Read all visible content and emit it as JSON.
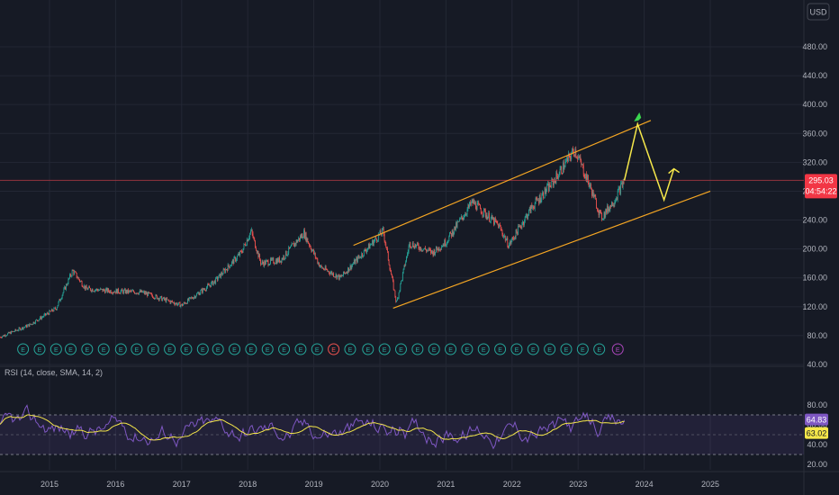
{
  "header": {
    "currency": "USD"
  },
  "colors": {
    "background": "#161a25",
    "grid": "#232734",
    "axis_text": "#b2b5be",
    "up": "#26a69a",
    "down": "#ef5350",
    "channel": "#f5a623",
    "projection": "#f5e74a",
    "price_line": "#b33a43",
    "price_tag": "#f23645",
    "rsi_line": "#7e57c2",
    "rsi_sma": "#f5e74a",
    "rsi_band": "#7e57c2",
    "rsi_tag_bg": "#7e57c2",
    "rsi_sma_tag_bg": "#f5e74a",
    "rocket": "#3ad64f"
  },
  "price_axis": {
    "ticks": [
      "480.00",
      "440.00",
      "400.00",
      "360.00",
      "320.00",
      "280.00",
      "240.00",
      "200.00",
      "160.00",
      "120.00",
      "80.00",
      "40.00"
    ]
  },
  "current_price": {
    "value": "295.03",
    "countdown": "04:54:22"
  },
  "time_axis": {
    "labels": [
      "2015",
      "2016",
      "2017",
      "2018",
      "2019",
      "2020",
      "2021",
      "2022",
      "2023",
      "2024",
      "2025"
    ]
  },
  "rsi": {
    "title": "RSI (14, close, SMA, 14, 2)",
    "ticks": [
      "80.00",
      "60.00",
      "40.00",
      "20.00"
    ],
    "value": "64.83",
    "sma_value": "63.02",
    "band_upper": 70,
    "band_lower": 30
  },
  "earnings_markers": {
    "events": [
      {
        "year": 2014.6,
        "kind": "E"
      },
      {
        "year": 2014.85,
        "kind": "E"
      },
      {
        "year": 2015.1,
        "kind": "E"
      },
      {
        "year": 2015.32,
        "kind": "E"
      },
      {
        "year": 2015.57,
        "kind": "E"
      },
      {
        "year": 2015.82,
        "kind": "E"
      },
      {
        "year": 2016.08,
        "kind": "E"
      },
      {
        "year": 2016.32,
        "kind": "E"
      },
      {
        "year": 2016.57,
        "kind": "E"
      },
      {
        "year": 2016.82,
        "kind": "E"
      },
      {
        "year": 2017.07,
        "kind": "E"
      },
      {
        "year": 2017.32,
        "kind": "E"
      },
      {
        "year": 2017.55,
        "kind": "E"
      },
      {
        "year": 2017.8,
        "kind": "E"
      },
      {
        "year": 2018.05,
        "kind": "E"
      },
      {
        "year": 2018.3,
        "kind": "E"
      },
      {
        "year": 2018.55,
        "kind": "E"
      },
      {
        "year": 2018.8,
        "kind": "E"
      },
      {
        "year": 2019.05,
        "kind": "E"
      },
      {
        "year": 2019.3,
        "kind": "E"
      },
      {
        "year": 2019.55,
        "kind": "E"
      },
      {
        "year": 2019.82,
        "kind": "E"
      },
      {
        "year": 2020.07,
        "kind": "E"
      },
      {
        "year": 2020.32,
        "kind": "E"
      },
      {
        "year": 2020.57,
        "kind": "E"
      },
      {
        "year": 2020.82,
        "kind": "E"
      },
      {
        "year": 2021.07,
        "kind": "E"
      },
      {
        "year": 2021.32,
        "kind": "E"
      },
      {
        "year": 2021.57,
        "kind": "E"
      },
      {
        "year": 2021.82,
        "kind": "E"
      },
      {
        "year": 2022.07,
        "kind": "E"
      },
      {
        "year": 2022.32,
        "kind": "E"
      },
      {
        "year": 2022.57,
        "kind": "E"
      },
      {
        "year": 2022.82,
        "kind": "E"
      },
      {
        "year": 2023.07,
        "kind": "E"
      },
      {
        "year": 2023.32,
        "kind": "E"
      },
      {
        "year": 2023.6,
        "kind": "E"
      }
    ]
  },
  "chart_data": {
    "type": "candlestick",
    "x_range": [
      2014.25,
      2025.9
    ],
    "y_range": [
      20,
      520
    ],
    "price_series_key_points": [
      {
        "date": 2014.25,
        "close": 78
      },
      {
        "date": 2014.7,
        "close": 95
      },
      {
        "date": 2015.1,
        "close": 118
      },
      {
        "date": 2015.35,
        "close": 170
      },
      {
        "date": 2015.55,
        "close": 145
      },
      {
        "date": 2015.9,
        "close": 142
      },
      {
        "date": 2016.4,
        "close": 140
      },
      {
        "date": 2016.8,
        "close": 128
      },
      {
        "date": 2017.0,
        "close": 122
      },
      {
        "date": 2017.5,
        "close": 155
      },
      {
        "date": 2017.9,
        "close": 195
      },
      {
        "date": 2018.05,
        "close": 225
      },
      {
        "date": 2018.2,
        "close": 180
      },
      {
        "date": 2018.5,
        "close": 185
      },
      {
        "date": 2018.85,
        "close": 222
      },
      {
        "date": 2019.1,
        "close": 175
      },
      {
        "date": 2019.4,
        "close": 160
      },
      {
        "date": 2019.75,
        "close": 195
      },
      {
        "date": 2020.05,
        "close": 225
      },
      {
        "date": 2020.25,
        "close": 125
      },
      {
        "date": 2020.45,
        "close": 208
      },
      {
        "date": 2020.8,
        "close": 195
      },
      {
        "date": 2021.0,
        "close": 210
      },
      {
        "date": 2021.4,
        "close": 265
      },
      {
        "date": 2021.8,
        "close": 232
      },
      {
        "date": 2021.95,
        "close": 205
      },
      {
        "date": 2022.3,
        "close": 258
      },
      {
        "date": 2022.6,
        "close": 290
      },
      {
        "date": 2022.95,
        "close": 338
      },
      {
        "date": 2023.2,
        "close": 282
      },
      {
        "date": 2023.35,
        "close": 243
      },
      {
        "date": 2023.55,
        "close": 268
      },
      {
        "date": 2023.7,
        "close": 295.03
      }
    ],
    "channel": {
      "upper": [
        {
          "date": 2019.6,
          "price": 205
        },
        {
          "date": 2024.1,
          "price": 378
        }
      ],
      "lower": [
        {
          "date": 2020.2,
          "price": 118
        },
        {
          "date": 2025.0,
          "price": 280
        }
      ]
    },
    "projection": [
      {
        "date": 2023.7,
        "price": 295.03
      },
      {
        "date": 2023.9,
        "price": 373
      },
      {
        "date": 2024.3,
        "price": 268
      },
      {
        "date": 2024.45,
        "price": 311
      }
    ],
    "rsi_series": {
      "name": "RSI",
      "ylim": [
        20,
        90
      ],
      "approx_range": [
        25,
        85
      ],
      "last_value": 64.83,
      "last_sma": 63.02
    }
  }
}
